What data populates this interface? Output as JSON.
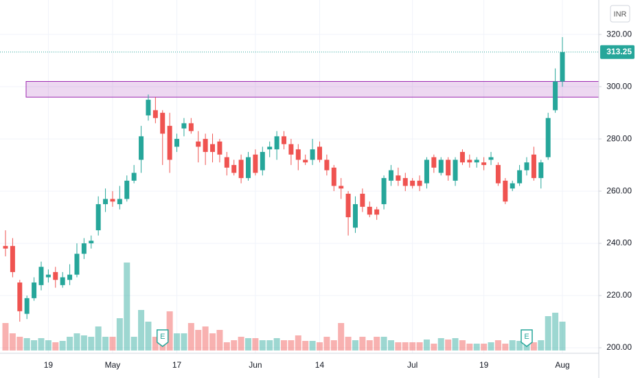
{
  "chart_data": {
    "type": "candlestick",
    "currency": "INR",
    "categories": [
      null,
      null,
      null,
      null,
      null,
      null,
      "19",
      null,
      null,
      null,
      null,
      null,
      null,
      null,
      null,
      "May",
      null,
      null,
      null,
      null,
      null,
      null,
      null,
      null,
      "17",
      null,
      null,
      null,
      null,
      null,
      null,
      null,
      null,
      null,
      null,
      "Jun",
      null,
      null,
      null,
      null,
      null,
      null,
      null,
      null,
      "14",
      null,
      null,
      null,
      null,
      null,
      null,
      null,
      null,
      null,
      null,
      null,
      null,
      "Jul",
      null,
      null,
      null,
      null,
      null,
      null,
      null,
      null,
      null,
      "19",
      null,
      null,
      null,
      null,
      null,
      null,
      null,
      null,
      null,
      null,
      "Aug"
    ],
    "open": [
      239,
      239,
      225,
      213,
      219,
      224,
      227,
      229,
      224,
      226,
      228,
      236,
      240,
      245,
      255,
      257,
      255,
      257,
      264,
      272,
      289,
      291,
      290,
      285,
      277,
      284,
      286,
      279,
      280,
      278,
      279,
      273,
      270,
      272,
      265,
      274,
      268,
      276,
      276,
      281,
      278,
      276,
      272,
      272,
      277,
      272,
      269,
      262,
      259,
      246,
      259,
      254,
      253,
      255,
      264,
      266,
      265,
      264,
      264,
      263,
      273,
      267,
      272,
      264,
      275,
      272,
      271,
      271,
      272,
      270,
      264,
      261,
      263,
      268,
      274,
      265,
      273,
      291,
      302
    ],
    "high": [
      245,
      242,
      226,
      220,
      227,
      233,
      230,
      231,
      229,
      232,
      240,
      242,
      243,
      258,
      261,
      260,
      262,
      266,
      270,
      285,
      297,
      296,
      291,
      290,
      282,
      288,
      288,
      283,
      282,
      282,
      280,
      275,
      272,
      274,
      275,
      276,
      277,
      279,
      283,
      283,
      280,
      278,
      274,
      280,
      279,
      274,
      270,
      265,
      260,
      258,
      261,
      256,
      254,
      266,
      270,
      269,
      267,
      265,
      266,
      273,
      274,
      273,
      273,
      273,
      276,
      274,
      273,
      273,
      275,
      271,
      265,
      264,
      270,
      273,
      277,
      272,
      290,
      307,
      319
    ],
    "low": [
      235,
      227,
      210,
      211,
      218,
      222,
      225,
      223,
      223,
      224,
      227,
      234,
      238,
      243,
      252,
      254,
      253,
      256,
      263,
      267,
      287,
      286,
      270,
      267,
      275,
      281,
      282,
      271,
      270,
      271,
      271,
      266,
      266,
      263,
      264,
      266,
      266,
      273,
      272,
      276,
      270,
      268,
      270,
      270,
      271,
      266,
      260,
      257,
      243,
      244,
      252,
      250,
      249,
      253,
      262,
      262,
      260,
      261,
      260,
      261,
      267,
      266,
      264,
      262,
      270,
      269,
      269,
      268,
      270,
      262,
      255,
      260,
      262,
      266,
      264,
      261,
      272,
      290,
      300
    ],
    "close": [
      238,
      229,
      214,
      219,
      225,
      231,
      228,
      226,
      227,
      228,
      236,
      240,
      241,
      255,
      257,
      256,
      257,
      264,
      267,
      281,
      295,
      288,
      282,
      272,
      280,
      286,
      283,
      277,
      275,
      275,
      274,
      269,
      267,
      265,
      273,
      267,
      275,
      277,
      281,
      278,
      274,
      272,
      271,
      276,
      272,
      268,
      262,
      261,
      250,
      255,
      254,
      251,
      251,
      265,
      268,
      264,
      262,
      262,
      262,
      272,
      269,
      272,
      266,
      272,
      271,
      271,
      272,
      270,
      273,
      263,
      256,
      263,
      268,
      271,
      265,
      271,
      288,
      302,
      313.25
    ],
    "volume": [
      40,
      25,
      20,
      18,
      15,
      18,
      15,
      12,
      14,
      20,
      25,
      22,
      20,
      35,
      20,
      20,
      47,
      128,
      20,
      59,
      42,
      20,
      25,
      57,
      25,
      25,
      40,
      30,
      35,
      25,
      30,
      12,
      15,
      20,
      18,
      18,
      15,
      15,
      18,
      15,
      15,
      22,
      14,
      14,
      12,
      20,
      15,
      40,
      20,
      15,
      20,
      15,
      20,
      20,
      15,
      12,
      12,
      12,
      12,
      16,
      10,
      18,
      16,
      18,
      15,
      10,
      10,
      10,
      12,
      15,
      10,
      15,
      14,
      12,
      12,
      15,
      50,
      55,
      42
    ],
    "up_color": "#26a69a",
    "down_color": "#ef5350",
    "ylim": [
      197.9,
      333.2
    ],
    "yticks": [
      {
        "value": 200,
        "label": "200.00"
      },
      {
        "value": 220,
        "label": "220.00"
      },
      {
        "value": 240,
        "label": "240.00"
      },
      {
        "value": 260,
        "label": "260.00"
      },
      {
        "value": 280,
        "label": "280.00"
      },
      {
        "value": 300,
        "label": "300.00"
      },
      {
        "value": 320,
        "label": "320.00"
      }
    ],
    "grid": true,
    "highlight_zone": [
      296,
      302
    ],
    "zone_color": "#9c27b0",
    "earnings_markers": [
      {
        "at": 22,
        "label": "E"
      },
      {
        "at": 73,
        "label": "E"
      }
    ]
  }
}
